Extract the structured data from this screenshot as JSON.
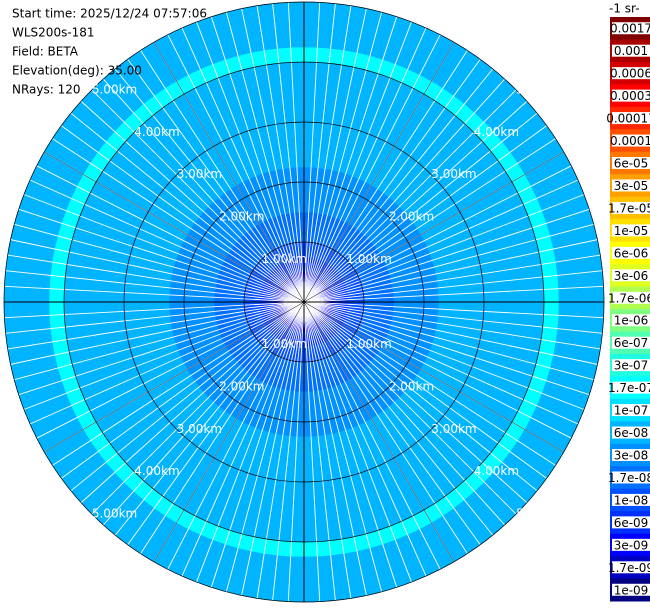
{
  "chart_data": {
    "type": "ppi",
    "title": "-1 sr-",
    "info_lines": [
      "Start time: 2025/12/24 07:57:06",
      "WLS200s-181",
      "Field: BETA",
      "Elevation(deg): 35.00",
      "NRays: 120"
    ],
    "xlim": [
      0,
      5
    ],
    "range_rings": [
      {
        "value": 1,
        "label": "1.00km"
      },
      {
        "value": 2,
        "label": "2.00km"
      },
      {
        "value": 3,
        "label": "3.00km"
      },
      {
        "value": 4,
        "label": "4.00km"
      },
      {
        "value": 5,
        "label": "5.00km"
      }
    ],
    "x": [
      0.125,
      0.375,
      0.625,
      0.875,
      1.125,
      1.375,
      1.625,
      1.875,
      2.125,
      2.375,
      2.625,
      2.875,
      3.125,
      3.375,
      3.625,
      3.875,
      4.125,
      4.375,
      4.625,
      4.875
    ],
    "values": [
      3e-09,
      3e-09,
      5e-09,
      8e-09,
      1.2e-08,
      1.5e-08,
      2e-08,
      2.5e-08,
      3e-08,
      3.5e-08,
      4e-08,
      4e-08,
      4e-08,
      4.5e-08,
      5e-08,
      5e-08,
      1.5e-07,
      5e-08,
      4e-08,
      6e-08
    ],
    "colorbar": {
      "ticks": [
        {
          "value": 0.0017,
          "label": "0.0017"
        },
        {
          "value": 0.001,
          "label": "0.001"
        },
        {
          "value": 0.0006,
          "label": "0.0006"
        },
        {
          "value": 0.0003,
          "label": "0.0003"
        },
        {
          "value": 0.00017,
          "label": "0.00017"
        },
        {
          "value": 0.0001,
          "label": "0.0001"
        },
        {
          "value": 6e-05,
          "label": "6e-05"
        },
        {
          "value": 3e-05,
          "label": "3e-05"
        },
        {
          "value": 1.7e-05,
          "label": "1.7e-05"
        },
        {
          "value": 1e-05,
          "label": "1e-05"
        },
        {
          "value": 6e-06,
          "label": "6e-06"
        },
        {
          "value": 3e-06,
          "label": "3e-06"
        },
        {
          "value": 1.7e-06,
          "label": "1.7e-06"
        },
        {
          "value": 1e-06,
          "label": "1e-06"
        },
        {
          "value": 6e-07,
          "label": "6e-07"
        },
        {
          "value": 3e-07,
          "label": "3e-07"
        },
        {
          "value": 1.7e-07,
          "label": "1.7e-07"
        },
        {
          "value": 1e-07,
          "label": "1e-07"
        },
        {
          "value": 6e-08,
          "label": "6e-08"
        },
        {
          "value": 3e-08,
          "label": "3e-08"
        },
        {
          "value": 1.7e-08,
          "label": "1.7e-08"
        },
        {
          "value": 1e-08,
          "label": "1e-08"
        },
        {
          "value": 6e-09,
          "label": "6e-09"
        },
        {
          "value": 3e-09,
          "label": "3e-09"
        },
        {
          "value": 1.7e-09,
          "label": "1.7e-09"
        },
        {
          "value": 1e-09,
          "label": "1e-09"
        }
      ],
      "colors": [
        "#800000",
        "#a80000",
        "#d40000",
        "#ff0000",
        "#ff2800",
        "#ff5000",
        "#ff7800",
        "#ffa000",
        "#ffc000",
        "#ffe000",
        "#ffff00",
        "#e0ff20",
        "#b0ff50",
        "#80ff80",
        "#50ffb0",
        "#20ffe0",
        "#00ffff",
        "#00e0ff",
        "#00b4ff",
        "#0090ff",
        "#0070ff",
        "#0050ff",
        "#0030ff",
        "#0000ff",
        "#0000c0",
        "#000080"
      ]
    }
  }
}
